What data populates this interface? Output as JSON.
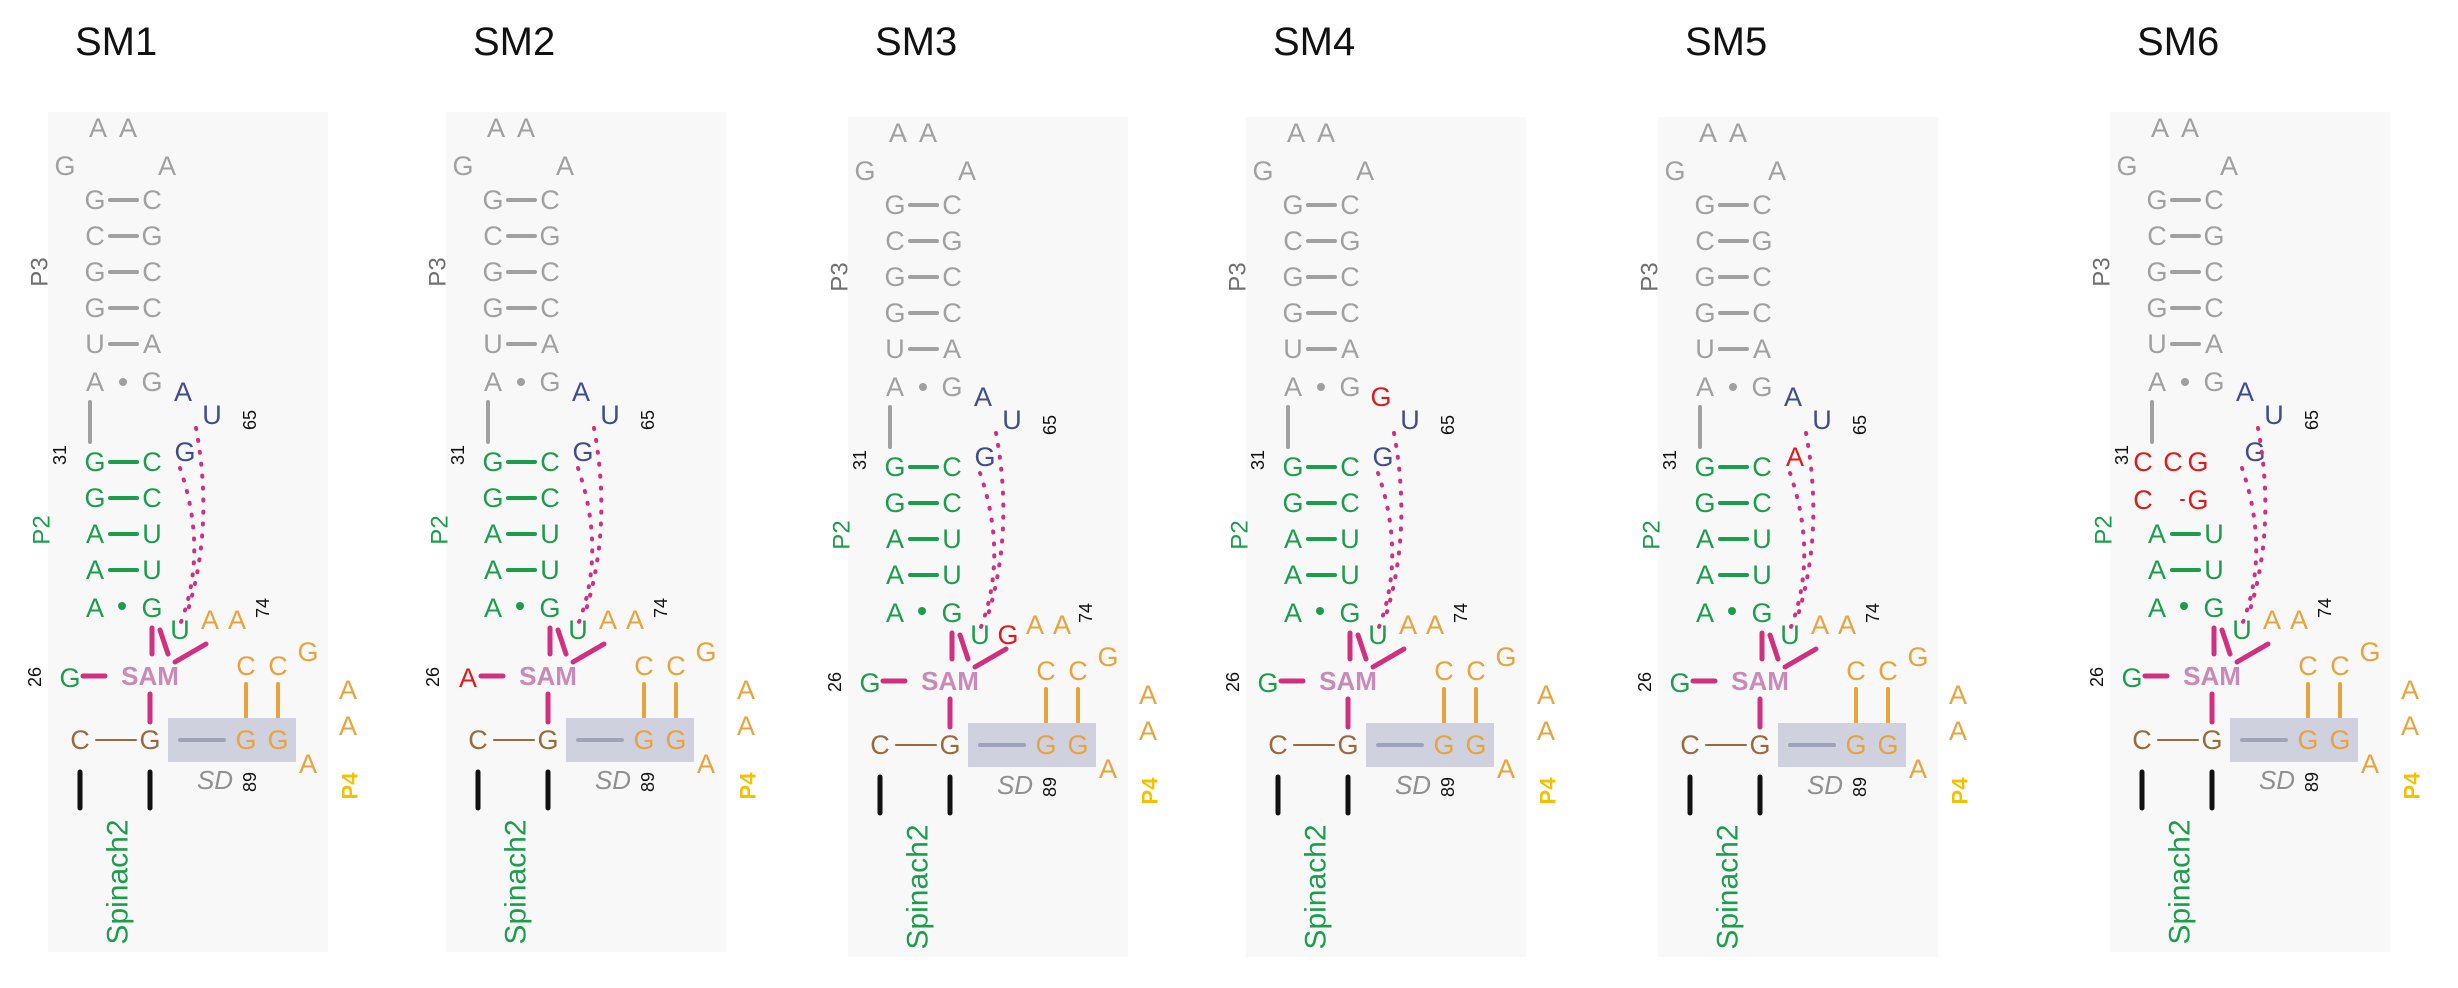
{
  "colors": {
    "gray": "#a0a0a0",
    "green": "#1b9e4b",
    "navy": "#3f4d8c",
    "magenta": "#d0307e",
    "sam": "#c88ab8",
    "orange": "#e8a33c",
    "brown": "#9a6a3a",
    "yellow": "#f2c200",
    "red": "#e01a1a",
    "sd_box": "#cfd1df",
    "black": "#111111"
  },
  "shared": {
    "p3_label": "P3",
    "p2_label": "P2",
    "p4_label": "P4",
    "spinach_label": "Spinach2",
    "sam_label": "SAM",
    "sd_label": "SD",
    "num_31": "31",
    "num_65": "65",
    "num_74": "74",
    "num_26": "26",
    "num_89": "89",
    "p3_loop": [
      "A",
      "A",
      "G",
      "A"
    ],
    "p3_pairs": [
      [
        "G",
        "C"
      ],
      [
        "C",
        "G"
      ],
      [
        "G",
        "C"
      ],
      [
        "G",
        "C"
      ],
      [
        "U",
        "A"
      ]
    ],
    "p3_wobble": [
      "A",
      "G"
    ],
    "p2_pairs": [
      [
        "G",
        "C"
      ],
      [
        "G",
        "C"
      ],
      [
        "A",
        "U"
      ],
      [
        "A",
        "U"
      ]
    ],
    "p2_wobble": [
      "A",
      "G"
    ],
    "junction_a": "A",
    "junction_u65": "U",
    "junction_g": "G",
    "junction_u": "U",
    "junction_aa": [
      "A",
      "A"
    ],
    "left_g26": "G",
    "p4_upper": [
      "C",
      "C"
    ],
    "p4_loop": [
      "G",
      "A",
      "A",
      "A"
    ],
    "p4_lower": [
      "G",
      "G"
    ],
    "base_pair": [
      "C",
      "G"
    ]
  },
  "panels": [
    {
      "title": "SM1",
      "g26": "G",
      "a64": "A",
      "g_extra": "",
      "g66": "G",
      "p2_top": [
        "G",
        "C",
        "G"
      ],
      "mut": {
        "g26": false,
        "a64": false,
        "g_extra": false,
        "g66": false,
        "p2_top": false
      }
    },
    {
      "title": "SM2",
      "g26": "A",
      "a64": "A",
      "g_extra": "",
      "g66": "G",
      "p2_top": [
        "G",
        "C",
        "G"
      ],
      "mut": {
        "g26": true,
        "a64": false,
        "g_extra": false,
        "g66": false,
        "p2_top": false
      }
    },
    {
      "title": "SM3",
      "g26": "G",
      "a64": "A",
      "g_extra": "G",
      "g66": "G",
      "p2_top": [
        "G",
        "C",
        "G"
      ],
      "mut": {
        "g26": false,
        "a64": false,
        "g_extra": true,
        "g66": false,
        "p2_top": false
      }
    },
    {
      "title": "SM4",
      "g26": "G",
      "a64": "G",
      "g_extra": "",
      "g66": "G",
      "p2_top": [
        "G",
        "C",
        "G"
      ],
      "mut": {
        "g26": false,
        "a64": true,
        "g_extra": false,
        "g66": false,
        "p2_top": false
      }
    },
    {
      "title": "SM5",
      "g26": "G",
      "a64": "A",
      "g_extra": "",
      "g66": "A",
      "p2_top": [
        "G",
        "C",
        "G"
      ],
      "mut": {
        "g26": false,
        "a64": false,
        "g_extra": false,
        "g66": true,
        "p2_top": false
      }
    },
    {
      "title": "SM6",
      "g26": "G",
      "a64": "A",
      "g_extra": "",
      "g66": "G",
      "p2_top": [
        "C",
        "C",
        "G",
        "G"
      ],
      "mut": {
        "g26": false,
        "a64": false,
        "g_extra": false,
        "g66": false,
        "p2_top": true
      }
    }
  ]
}
